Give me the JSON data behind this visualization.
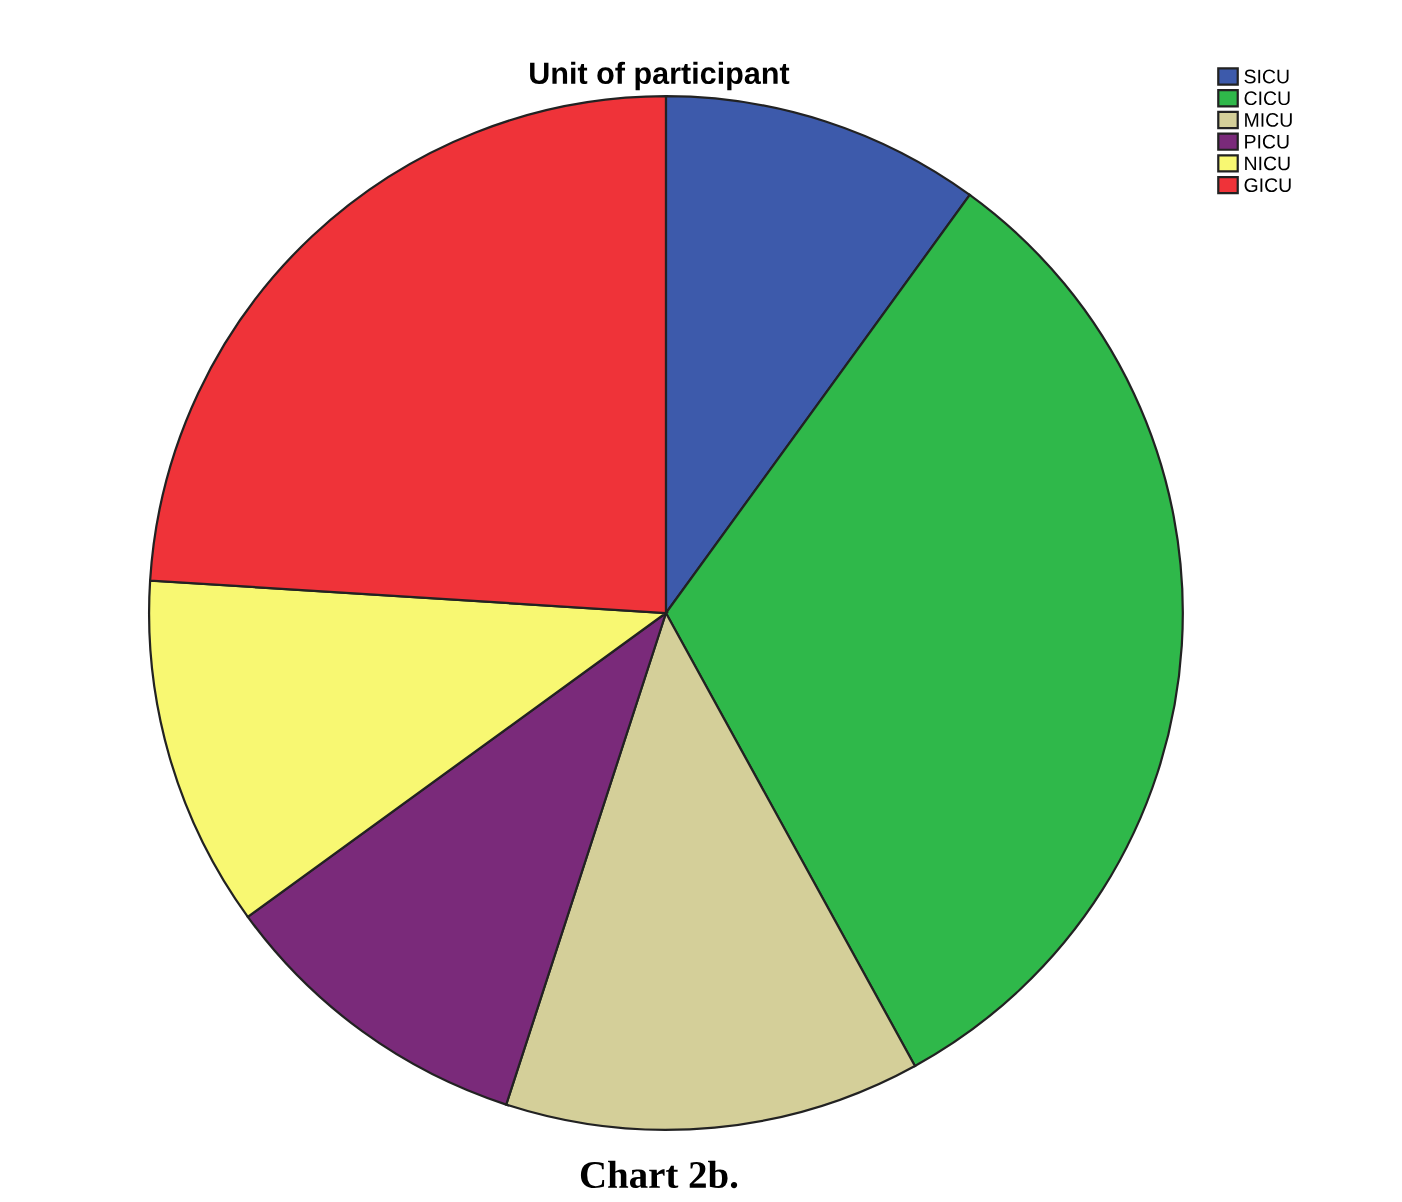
{
  "chart_data": {
    "type": "pie",
    "title": "Unit of participant",
    "categories": [
      "SICU",
      "CICU",
      "MICU",
      "PICU",
      "NICU",
      "GICU"
    ],
    "values": [
      10,
      32,
      13,
      10,
      11,
      24
    ],
    "colors": [
      "#3d5aab",
      "#2fb84a",
      "#d4cf99",
      "#7a2a7a",
      "#f8f872",
      "#ef3339"
    ],
    "legend": "top right",
    "annotations": [
      "Chart 2b."
    ]
  }
}
